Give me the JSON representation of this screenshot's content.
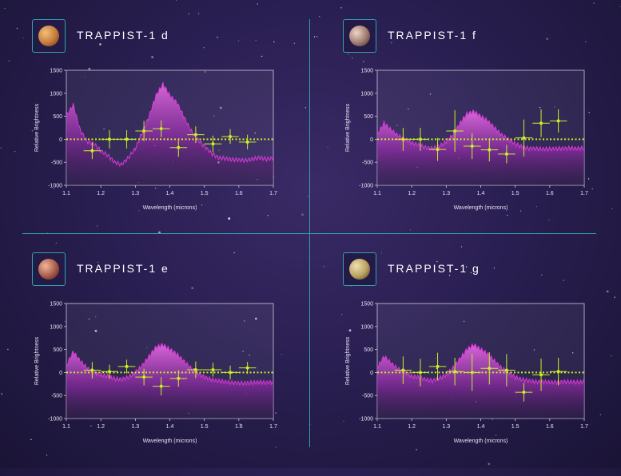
{
  "colors": {
    "background": "#2a1f52",
    "divider": "#2fa3ad",
    "spectrum": "#d838d8",
    "data_points": "#c8f026"
  },
  "chart_data": [
    {
      "type": "area",
      "title": "TRAPPIST-1 d",
      "planet_icon": "planet-d-icon",
      "xlabel": "Wavelength (microns)",
      "ylabel": "Relative Brightness",
      "xlim": [
        1.1,
        1.7
      ],
      "ylim": [
        -1000,
        1500
      ],
      "xticks": [
        "1.1",
        "1.2",
        "1.3",
        "1.4",
        "1.5",
        "1.6",
        "1.7"
      ],
      "yticks": [
        "1500",
        "1000",
        "500",
        "0",
        "-500",
        "-1000"
      ],
      "model_spectrum": {
        "x": [
          1.1,
          1.12,
          1.14,
          1.16,
          1.18,
          1.2,
          1.22,
          1.24,
          1.26,
          1.28,
          1.3,
          1.32,
          1.34,
          1.36,
          1.38,
          1.4,
          1.42,
          1.44,
          1.46,
          1.48,
          1.5,
          1.52,
          1.54,
          1.56,
          1.58,
          1.6,
          1.62,
          1.64,
          1.66,
          1.68,
          1.7
        ],
        "y": [
          500,
          750,
          200,
          -50,
          -100,
          -250,
          -350,
          -500,
          -550,
          -400,
          -200,
          150,
          500,
          950,
          1200,
          950,
          800,
          500,
          200,
          0,
          -150,
          -300,
          -400,
          -420,
          -440,
          -450,
          -460,
          -430,
          -400,
          -430,
          -410
        ]
      },
      "measurements": [
        {
          "x": 1.175,
          "y": -250,
          "xerr": 0.025,
          "yerr": 180
        },
        {
          "x": 1.225,
          "y": 0,
          "xerr": 0.025,
          "yerr": 200
        },
        {
          "x": 1.275,
          "y": 0,
          "xerr": 0.025,
          "yerr": 200
        },
        {
          "x": 1.325,
          "y": 180,
          "xerr": 0.025,
          "yerr": 220
        },
        {
          "x": 1.375,
          "y": 230,
          "xerr": 0.025,
          "yerr": 180
        },
        {
          "x": 1.425,
          "y": -180,
          "xerr": 0.025,
          "yerr": 200
        },
        {
          "x": 1.475,
          "y": 100,
          "xerr": 0.025,
          "yerr": 180
        },
        {
          "x": 1.525,
          "y": -100,
          "xerr": 0.025,
          "yerr": 180
        },
        {
          "x": 1.575,
          "y": 60,
          "xerr": 0.025,
          "yerr": 160
        },
        {
          "x": 1.625,
          "y": -60,
          "xerr": 0.025,
          "yerr": 160
        }
      ]
    },
    {
      "type": "area",
      "title": "TRAPPIST-1 f",
      "planet_icon": "planet-f-icon",
      "xlabel": "Wavelength (microns)",
      "ylabel": "Relative Brightness",
      "xlim": [
        1.1,
        1.7
      ],
      "ylim": [
        -1000,
        1500
      ],
      "xticks": [
        "1.1",
        "1.2",
        "1.3",
        "1.4",
        "1.5",
        "1.6",
        "1.7"
      ],
      "yticks": [
        "1500",
        "1000",
        "500",
        "0",
        "-500",
        "-1000"
      ],
      "model_spectrum": {
        "x": [
          1.1,
          1.12,
          1.14,
          1.16,
          1.18,
          1.2,
          1.22,
          1.24,
          1.26,
          1.28,
          1.3,
          1.32,
          1.34,
          1.36,
          1.38,
          1.4,
          1.42,
          1.44,
          1.46,
          1.48,
          1.5,
          1.52,
          1.54,
          1.56,
          1.58,
          1.6,
          1.62,
          1.64,
          1.66,
          1.68,
          1.7
        ],
        "y": [
          100,
          350,
          200,
          80,
          0,
          -80,
          -120,
          -180,
          -200,
          -150,
          -50,
          100,
          350,
          550,
          600,
          500,
          400,
          250,
          100,
          0,
          -100,
          -160,
          -200,
          -200,
          -210,
          -210,
          -200,
          -200,
          -190,
          -200,
          -190
        ]
      },
      "measurements": [
        {
          "x": 1.175,
          "y": 0,
          "xerr": 0.025,
          "yerr": 250
        },
        {
          "x": 1.225,
          "y": 0,
          "xerr": 0.025,
          "yerr": 250
        },
        {
          "x": 1.275,
          "y": -220,
          "xerr": 0.025,
          "yerr": 250
        },
        {
          "x": 1.325,
          "y": 180,
          "xerr": 0.025,
          "yerr": 450
        },
        {
          "x": 1.375,
          "y": -150,
          "xerr": 0.025,
          "yerr": 280
        },
        {
          "x": 1.425,
          "y": -230,
          "xerr": 0.025,
          "yerr": 250
        },
        {
          "x": 1.475,
          "y": -320,
          "xerr": 0.025,
          "yerr": 200
        },
        {
          "x": 1.525,
          "y": 30,
          "xerr": 0.025,
          "yerr": 400
        },
        {
          "x": 1.575,
          "y": 350,
          "xerr": 0.025,
          "yerr": 300
        },
        {
          "x": 1.625,
          "y": 400,
          "xerr": 0.025,
          "yerr": 250
        }
      ]
    },
    {
      "type": "area",
      "title": "TRAPPIST-1 e",
      "planet_icon": "planet-e-icon",
      "xlabel": "Wavelength (microns)",
      "ylabel": "Relative Brightness",
      "xlim": [
        1.1,
        1.7
      ],
      "ylim": [
        -1000,
        1500
      ],
      "xticks": [
        "1.1",
        "1.2",
        "1.3",
        "1.4",
        "1.5",
        "1.6",
        "1.7"
      ],
      "yticks": [
        "1500",
        "1000",
        "500",
        "0",
        "-500",
        "-1000"
      ],
      "model_spectrum": {
        "x": [
          1.1,
          1.12,
          1.14,
          1.16,
          1.18,
          1.2,
          1.22,
          1.24,
          1.26,
          1.28,
          1.3,
          1.32,
          1.34,
          1.36,
          1.38,
          1.4,
          1.42,
          1.44,
          1.46,
          1.48,
          1.5,
          1.52,
          1.54,
          1.56,
          1.58,
          1.6,
          1.62,
          1.64,
          1.66,
          1.68,
          1.7
        ],
        "y": [
          150,
          450,
          250,
          100,
          0,
          -50,
          -80,
          -130,
          -150,
          -100,
          0,
          150,
          350,
          550,
          600,
          500,
          400,
          250,
          100,
          0,
          -100,
          -150,
          -180,
          -200,
          -220,
          -230,
          -230,
          -220,
          -210,
          -220,
          -210
        ]
      },
      "measurements": [
        {
          "x": 1.175,
          "y": 50,
          "xerr": 0.025,
          "yerr": 180
        },
        {
          "x": 1.225,
          "y": 20,
          "xerr": 0.025,
          "yerr": 150
        },
        {
          "x": 1.275,
          "y": 130,
          "xerr": 0.025,
          "yerr": 150
        },
        {
          "x": 1.325,
          "y": -100,
          "xerr": 0.025,
          "yerr": 180
        },
        {
          "x": 1.375,
          "y": -300,
          "xerr": 0.025,
          "yerr": 200
        },
        {
          "x": 1.425,
          "y": -130,
          "xerr": 0.025,
          "yerr": 180
        },
        {
          "x": 1.475,
          "y": 60,
          "xerr": 0.025,
          "yerr": 180
        },
        {
          "x": 1.525,
          "y": 60,
          "xerr": 0.025,
          "yerr": 150
        },
        {
          "x": 1.575,
          "y": 0,
          "xerr": 0.025,
          "yerr": 150
        },
        {
          "x": 1.625,
          "y": 100,
          "xerr": 0.025,
          "yerr": 130
        }
      ]
    },
    {
      "type": "area",
      "title": "TRAPPIST-1 g",
      "planet_icon": "planet-g-icon",
      "xlabel": "Wavelength (microns)",
      "ylabel": "Relative Brightness",
      "xlim": [
        1.1,
        1.7
      ],
      "ylim": [
        -1000,
        1500
      ],
      "xticks": [
        "1.1",
        "1.2",
        "1.3",
        "1.4",
        "1.5",
        "1.6",
        "1.7"
      ],
      "yticks": [
        "1500",
        "1000",
        "500",
        "0",
        "-500",
        "-1000"
      ],
      "model_spectrum": {
        "x": [
          1.1,
          1.12,
          1.14,
          1.16,
          1.18,
          1.2,
          1.22,
          1.24,
          1.26,
          1.28,
          1.3,
          1.32,
          1.34,
          1.36,
          1.38,
          1.4,
          1.42,
          1.44,
          1.46,
          1.48,
          1.5,
          1.52,
          1.54,
          1.56,
          1.58,
          1.6,
          1.62,
          1.64,
          1.66,
          1.68,
          1.7
        ],
        "y": [
          100,
          350,
          200,
          80,
          0,
          -80,
          -100,
          -150,
          -180,
          -120,
          -50,
          100,
          300,
          500,
          600,
          500,
          400,
          250,
          100,
          0,
          -100,
          -150,
          -180,
          -200,
          -200,
          -210,
          -210,
          -200,
          -200,
          -210,
          -200
        ]
      },
      "measurements": [
        {
          "x": 1.175,
          "y": 50,
          "xerr": 0.025,
          "yerr": 300
        },
        {
          "x": 1.225,
          "y": 0,
          "xerr": 0.025,
          "yerr": 300
        },
        {
          "x": 1.275,
          "y": 130,
          "xerr": 0.025,
          "yerr": 300
        },
        {
          "x": 1.325,
          "y": 20,
          "xerr": 0.025,
          "yerr": 300
        },
        {
          "x": 1.375,
          "y": 0,
          "xerr": 0.025,
          "yerr": 400
        },
        {
          "x": 1.425,
          "y": 90,
          "xerr": 0.025,
          "yerr": 350
        },
        {
          "x": 1.475,
          "y": 50,
          "xerr": 0.025,
          "yerr": 350
        },
        {
          "x": 1.525,
          "y": -430,
          "xerr": 0.025,
          "yerr": 200
        },
        {
          "x": 1.575,
          "y": -50,
          "xerr": 0.025,
          "yerr": 350
        },
        {
          "x": 1.625,
          "y": 20,
          "xerr": 0.025,
          "yerr": 300
        }
      ]
    }
  ]
}
